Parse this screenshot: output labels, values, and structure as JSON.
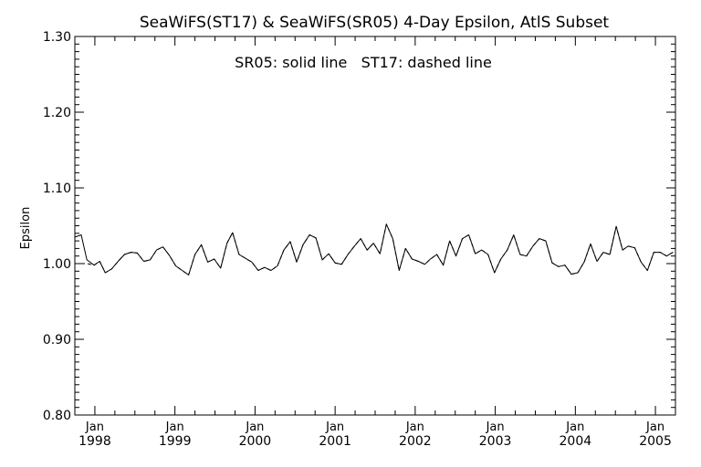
{
  "chart_data": {
    "type": "line",
    "title": "SeaWiFS(ST17) & SeaWiFS(SR05) 4-Day Epsilon, AtlS Subset",
    "annotation": "SR05: solid line   ST17: dashed line",
    "xlabel": "",
    "ylabel": "Epsilon",
    "ylim": [
      0.8,
      1.3
    ],
    "xlim": [
      1997.75,
      2005.25
    ],
    "grid": false,
    "y_ticks": [
      "0.80",
      "0.90",
      "1.00",
      "1.10",
      "1.20",
      "1.30"
    ],
    "x_ticks": [
      {
        "month": "Jan",
        "year": "1998",
        "value": 1998.0
      },
      {
        "month": "Jan",
        "year": "1999",
        "value": 1999.0
      },
      {
        "month": "Jan",
        "year": "2000",
        "value": 2000.0
      },
      {
        "month": "Jan",
        "year": "2001",
        "value": 2001.0
      },
      {
        "month": "Jan",
        "year": "2002",
        "value": 2002.0
      },
      {
        "month": "Jan",
        "year": "2003",
        "value": 2003.0
      },
      {
        "month": "Jan",
        "year": "2004",
        "value": 2004.0
      },
      {
        "month": "Jan",
        "year": "2005",
        "value": 2005.0
      }
    ],
    "series": [
      {
        "name": "SR05",
        "style": "solid",
        "color": "#000000",
        "x": [
          1997.75,
          1997.83,
          1997.9,
          1997.99,
          1998.06,
          1998.13,
          1998.21,
          1998.29,
          1998.37,
          1998.45,
          1998.53,
          1998.61,
          1998.69,
          1998.77,
          1998.85,
          1998.93,
          1999.01,
          1999.09,
          1999.17,
          1999.25,
          1999.33,
          1999.41,
          1999.49,
          1999.57,
          1999.65,
          1999.72,
          1999.8,
          1999.88,
          1999.96,
          2000.04,
          2000.12,
          2000.2,
          2000.28,
          2000.36,
          2000.44,
          2000.52,
          2000.6,
          2000.68,
          2000.76,
          2000.84,
          2000.92,
          2001.0,
          2001.08,
          2001.16,
          2001.24,
          2001.32,
          2001.4,
          2001.48,
          2001.56,
          2001.64,
          2001.72,
          2001.8,
          2001.88,
          2001.96,
          2002.04,
          2002.12,
          2002.19,
          2002.27,
          2002.35,
          2002.43,
          2002.51,
          2002.59,
          2002.67,
          2002.75,
          2002.83,
          2002.91,
          2002.99,
          2003.07,
          2003.15,
          2003.23,
          2003.31,
          2003.39,
          2003.47,
          2003.55,
          2003.63,
          2003.71,
          2003.79,
          2003.87,
          2003.95,
          2004.03,
          2004.11,
          2004.19,
          2004.27,
          2004.35,
          2004.43,
          2004.51,
          2004.59,
          2004.66,
          2004.74,
          2004.82,
          2004.9,
          2004.98,
          2005.06,
          2005.14,
          2005.22
        ],
        "y": [
          1.035,
          1.038,
          1.005,
          0.998,
          1.003,
          0.988,
          0.993,
          1.003,
          1.012,
          1.015,
          1.014,
          1.003,
          1.005,
          1.018,
          1.022,
          1.011,
          0.997,
          0.991,
          0.985,
          1.012,
          1.025,
          1.002,
          1.006,
          0.994,
          1.027,
          1.041,
          1.012,
          1.007,
          1.002,
          0.991,
          0.995,
          0.991,
          0.997,
          1.018,
          1.029,
          1.002,
          1.025,
          1.038,
          1.034,
          1.005,
          1.013,
          1.001,
          0.999,
          1.012,
          1.023,
          1.033,
          1.018,
          1.027,
          1.013,
          1.052,
          1.033,
          0.991,
          1.02,
          1.006,
          1.003,
          0.999,
          1.006,
          1.012,
          0.998,
          1.03,
          1.01,
          1.033,
          1.038,
          1.013,
          1.018,
          1.012,
          0.988,
          1.006,
          1.018,
          1.038,
          1.012,
          1.01,
          1.023,
          1.033,
          1.03,
          1.001,
          0.996,
          0.998,
          0.986,
          0.988,
          1.002,
          1.026,
          1.003,
          1.015,
          1.012,
          1.049,
          1.018,
          1.023,
          1.021,
          1.002,
          0.991,
          1.015,
          1.015,
          1.01,
          1.015
        ]
      },
      {
        "name": "ST17",
        "style": "dashed",
        "color": "#000000",
        "x": [
          1997.75,
          1997.83,
          1997.9,
          1997.99,
          1998.06,
          1998.13,
          1998.21,
          1998.29,
          1998.37,
          1998.45,
          1998.53,
          1998.61,
          1998.69,
          1998.77,
          1998.85,
          1998.93,
          1999.01,
          1999.09,
          1999.17,
          1999.25,
          1999.33,
          1999.41,
          1999.49,
          1999.57,
          1999.65,
          1999.72,
          1999.8,
          1999.88,
          1999.96,
          2000.04,
          2000.12,
          2000.2,
          2000.28,
          2000.36,
          2000.44,
          2000.52,
          2000.6,
          2000.68,
          2000.76,
          2000.84,
          2000.92,
          2001.0,
          2001.08,
          2001.16,
          2001.24,
          2001.32,
          2001.4,
          2001.48,
          2001.56,
          2001.64,
          2001.72,
          2001.8,
          2001.88,
          2001.96,
          2002.04,
          2002.12,
          2002.19,
          2002.27,
          2002.35,
          2002.43,
          2002.51,
          2002.59,
          2002.67,
          2002.75,
          2002.83,
          2002.91,
          2002.99,
          2003.07,
          2003.15,
          2003.23,
          2003.31,
          2003.39,
          2003.47,
          2003.55,
          2003.63,
          2003.71,
          2003.79,
          2003.87,
          2003.95,
          2004.03,
          2004.11,
          2004.19,
          2004.27,
          2004.35,
          2004.43,
          2004.51,
          2004.59,
          2004.66,
          2004.74,
          2004.82,
          2004.9,
          2004.98,
          2005.06,
          2005.14,
          2005.22
        ],
        "y": [
          1.0,
          1.0,
          1.0,
          0.998,
          1.003,
          0.988,
          0.993,
          1.003,
          1.012,
          1.015,
          1.014,
          1.003,
          1.005,
          1.018,
          1.022,
          1.011,
          0.997,
          0.991,
          0.985,
          1.012,
          1.025,
          1.002,
          1.006,
          0.994,
          1.027,
          1.041,
          1.012,
          1.007,
          1.002,
          0.991,
          0.995,
          0.991,
          0.997,
          1.018,
          1.029,
          1.002,
          1.025,
          1.038,
          1.034,
          1.005,
          1.013,
          1.001,
          0.999,
          1.012,
          1.023,
          1.033,
          1.018,
          1.027,
          1.013,
          1.052,
          1.033,
          0.991,
          1.02,
          1.006,
          1.003,
          0.999,
          1.006,
          1.012,
          0.998,
          1.03,
          1.01,
          1.033,
          1.038,
          1.013,
          1.018,
          1.012,
          0.988,
          1.006,
          1.018,
          1.038,
          1.012,
          1.01,
          1.023,
          1.033,
          1.03,
          1.001,
          0.996,
          0.998,
          0.986,
          0.988,
          1.002,
          1.026,
          1.003,
          1.015,
          1.012,
          1.049,
          1.018,
          1.023,
          1.021,
          1.002,
          0.991,
          1.015,
          1.015,
          1.01,
          1.015
        ]
      }
    ]
  }
}
